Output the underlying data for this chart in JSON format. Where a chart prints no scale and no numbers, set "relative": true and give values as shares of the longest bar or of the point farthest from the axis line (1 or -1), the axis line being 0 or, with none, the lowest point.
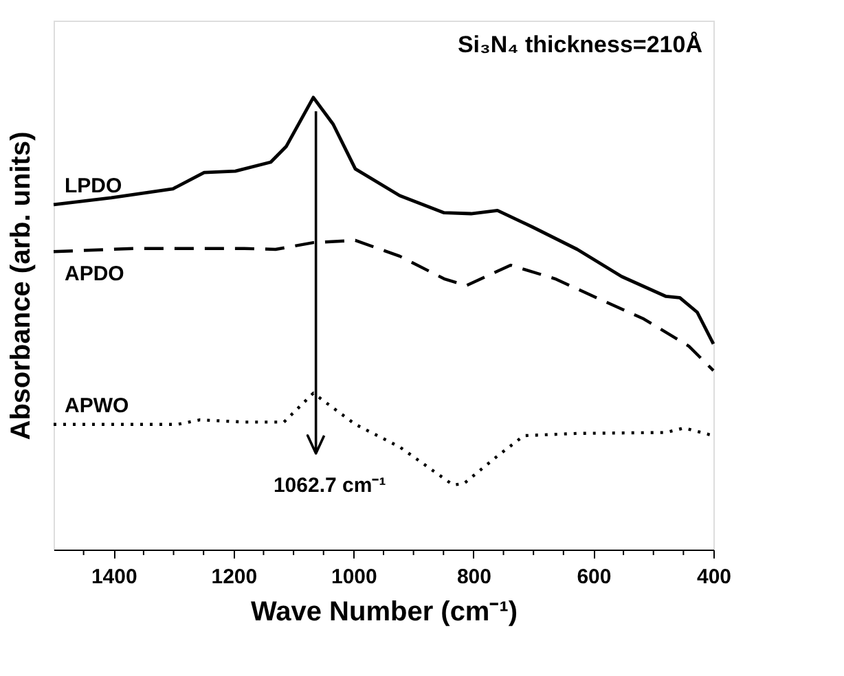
{
  "chart_data": {
    "type": "line",
    "title": "Si₃N₄ thickness=210Å",
    "xlabel": "Wave Number (cm⁻¹)",
    "ylabel": "Absorbance (arb. units)",
    "relative": true,
    "grid": false,
    "marker": "none",
    "xlim": [
      1500,
      400
    ],
    "xticks": [
      {
        "value": 1450,
        "label": null
      },
      1400,
      {
        "value": 1350,
        "label": null
      },
      {
        "value": 1300,
        "label": null
      },
      {
        "value": 1250,
        "label": null
      },
      1200,
      {
        "value": 1150,
        "label": null
      },
      {
        "value": 1100,
        "label": null
      },
      {
        "value": 1050,
        "label": null
      },
      1000,
      {
        "value": 950,
        "label": null
      },
      {
        "value": 900,
        "label": null
      },
      {
        "value": 850,
        "label": null
      },
      800,
      {
        "value": 750,
        "label": null
      },
      {
        "value": 700,
        "label": null
      },
      {
        "value": 650,
        "label": null
      },
      600,
      {
        "value": 550,
        "label": null
      },
      {
        "value": 500,
        "label": null
      },
      {
        "value": 450,
        "label": null
      },
      400
    ],
    "ref_lines": [
      {
        "axis": "x",
        "value": 1062.7,
        "label": "1062.7 cm⁻¹",
        "color": "#000000",
        "line_style": "solid"
      }
    ],
    "series": [
      {
        "name": "LPDO",
        "color": "#000000",
        "line_style": "solid",
        "x": [
          1500,
          1404,
          1301,
          1249,
          1197,
          1138,
          1112,
          1067,
          1034,
          997,
          923,
          849,
          804,
          760,
          701,
          627,
          553,
          479,
          456,
          427,
          400
        ],
        "values": [
          0.763,
          0.778,
          0.798,
          0.834,
          0.837,
          0.857,
          0.892,
          1.0,
          0.941,
          0.842,
          0.783,
          0.745,
          0.743,
          0.75,
          0.713,
          0.664,
          0.604,
          0.56,
          0.557,
          0.525,
          0.455
        ]
      },
      {
        "name": "APDO",
        "color": "#000000",
        "line_style": "dashed",
        "x": [
          1500,
          1367,
          1182,
          1130,
          1067,
          997,
          923,
          849,
          812,
          738,
          664,
          590,
          516,
          441,
          400
        ],
        "values": [
          0.659,
          0.666,
          0.666,
          0.664,
          0.679,
          0.684,
          0.649,
          0.599,
          0.584,
          0.629,
          0.599,
          0.554,
          0.51,
          0.45,
          0.396
        ]
      },
      {
        "name": "APWO",
        "color": "#000000",
        "line_style": "dotted",
        "x": [
          1500,
          1293,
          1256,
          1182,
          1116,
          1067,
          997,
          923,
          834,
          816,
          760,
          716,
          627,
          479,
          449,
          400
        ],
        "values": [
          0.277,
          0.277,
          0.287,
          0.282,
          0.282,
          0.346,
          0.277,
          0.227,
          0.143,
          0.146,
          0.207,
          0.252,
          0.257,
          0.259,
          0.269,
          0.252
        ]
      }
    ]
  }
}
